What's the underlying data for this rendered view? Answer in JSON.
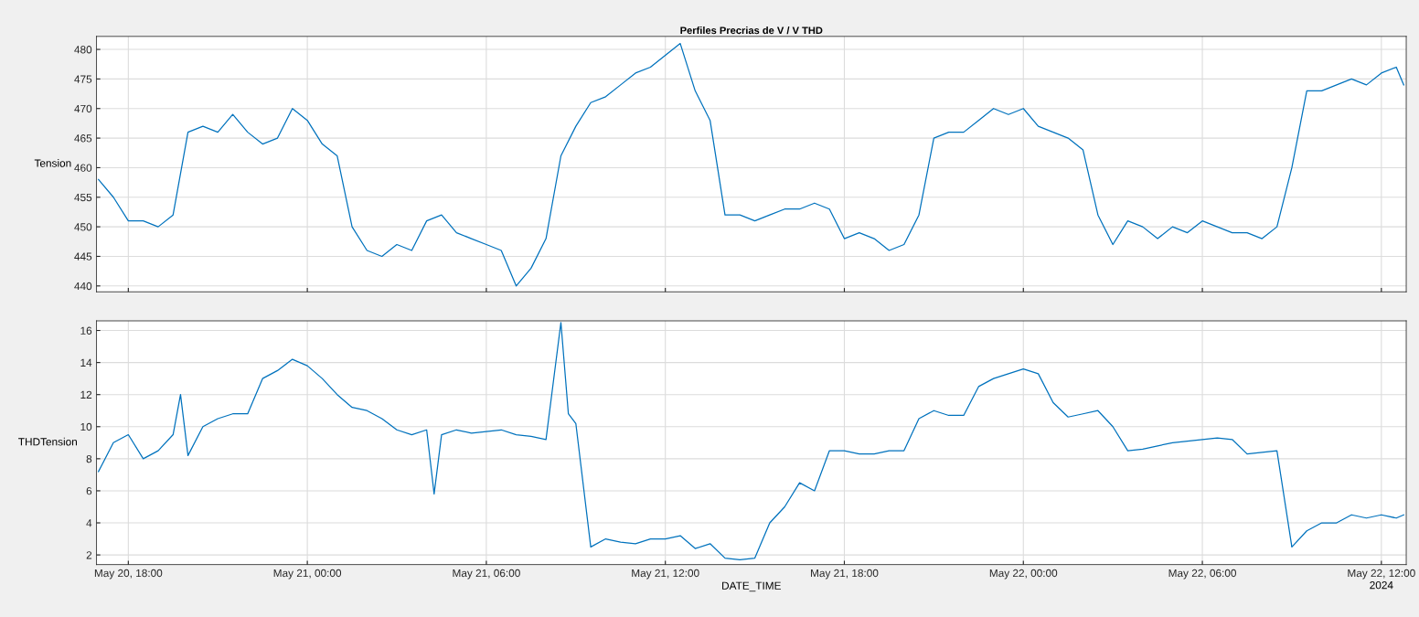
{
  "chart_data": [
    {
      "type": "line",
      "title": "Perfiles Precrias de V / V THD",
      "ylabel": "Tension",
      "grid": true,
      "tick_labels": "y",
      "xlim": [
        "2024-05-20T16:56",
        "2024-05-22T12:50"
      ],
      "ylim": [
        439,
        482.2
      ],
      "yticks": [
        440,
        445,
        450,
        455,
        460,
        465,
        470,
        475,
        480
      ],
      "xticks": [
        {
          "value": "2024-05-20T18:00",
          "label": null
        },
        {
          "value": "2024-05-21T00:00",
          "label": null
        },
        {
          "value": "2024-05-21T06:00",
          "label": null
        },
        {
          "value": "2024-05-21T12:00",
          "label": null
        },
        {
          "value": "2024-05-21T18:00",
          "label": null
        },
        {
          "value": "2024-05-22T00:00",
          "label": null
        },
        {
          "value": "2024-05-22T06:00",
          "label": null
        },
        {
          "value": "2024-05-22T12:00",
          "label": null
        }
      ],
      "x": [
        "2024-05-20T17:00",
        "2024-05-20T17:30",
        "2024-05-20T18:00",
        "2024-05-20T18:30",
        "2024-05-20T19:00",
        "2024-05-20T19:30",
        "2024-05-20T20:00",
        "2024-05-20T20:30",
        "2024-05-20T21:00",
        "2024-05-20T21:30",
        "2024-05-20T22:00",
        "2024-05-20T22:30",
        "2024-05-20T23:00",
        "2024-05-20T23:30",
        "2024-05-21T00:00",
        "2024-05-21T00:30",
        "2024-05-21T01:00",
        "2024-05-21T01:30",
        "2024-05-21T02:00",
        "2024-05-21T02:30",
        "2024-05-21T03:00",
        "2024-05-21T03:30",
        "2024-05-21T04:00",
        "2024-05-21T04:30",
        "2024-05-21T05:00",
        "2024-05-21T05:30",
        "2024-05-21T06:00",
        "2024-05-21T06:30",
        "2024-05-21T07:00",
        "2024-05-21T07:30",
        "2024-05-21T08:00",
        "2024-05-21T08:30",
        "2024-05-21T09:00",
        "2024-05-21T09:30",
        "2024-05-21T10:00",
        "2024-05-21T10:30",
        "2024-05-21T11:00",
        "2024-05-21T11:30",
        "2024-05-21T12:00",
        "2024-05-21T12:30",
        "2024-05-21T13:00",
        "2024-05-21T13:30",
        "2024-05-21T14:00",
        "2024-05-21T14:30",
        "2024-05-21T15:00",
        "2024-05-21T15:30",
        "2024-05-21T16:00",
        "2024-05-21T16:30",
        "2024-05-21T17:00",
        "2024-05-21T17:30",
        "2024-05-21T18:00",
        "2024-05-21T18:30",
        "2024-05-21T19:00",
        "2024-05-21T19:30",
        "2024-05-21T20:00",
        "2024-05-21T20:30",
        "2024-05-21T21:00",
        "2024-05-21T21:30",
        "2024-05-21T22:00",
        "2024-05-21T22:30",
        "2024-05-21T23:00",
        "2024-05-21T23:30",
        "2024-05-22T00:00",
        "2024-05-22T00:30",
        "2024-05-22T01:00",
        "2024-05-22T01:30",
        "2024-05-22T02:00",
        "2024-05-22T02:30",
        "2024-05-22T03:00",
        "2024-05-22T03:30",
        "2024-05-22T04:00",
        "2024-05-22T04:30",
        "2024-05-22T05:00",
        "2024-05-22T05:30",
        "2024-05-22T06:00",
        "2024-05-22T06:30",
        "2024-05-22T07:00",
        "2024-05-22T07:30",
        "2024-05-22T08:00",
        "2024-05-22T08:30",
        "2024-05-22T09:00",
        "2024-05-22T09:30",
        "2024-05-22T10:00",
        "2024-05-22T10:30",
        "2024-05-22T11:00",
        "2024-05-22T11:30",
        "2024-05-22T12:00",
        "2024-05-22T12:30",
        "2024-05-22T12:45"
      ],
      "series": [
        {
          "color": "#0072bd",
          "values": [
            458,
            455,
            451,
            451,
            450,
            452,
            466,
            467,
            466,
            469,
            466,
            464,
            465,
            470,
            468,
            464,
            462,
            450,
            446,
            445,
            447,
            446,
            451,
            452,
            449,
            448,
            447,
            446,
            440,
            443,
            448,
            462,
            467,
            471,
            472,
            474,
            476,
            477,
            479,
            481,
            473,
            468,
            452,
            452,
            451,
            452,
            453,
            453,
            454,
            453,
            448,
            449,
            448,
            446,
            447,
            452,
            465,
            466,
            466,
            468,
            470,
            469,
            470,
            467,
            466,
            465,
            463,
            452,
            447,
            451,
            450,
            448,
            450,
            449,
            451,
            450,
            449,
            449,
            448,
            450,
            460,
            473,
            473,
            474,
            475,
            474,
            476,
            477,
            474
          ]
        }
      ]
    },
    {
      "type": "line",
      "ylabel": "THDTension",
      "xlabel": "DATE_TIME",
      "grid": true,
      "xlim": [
        "2024-05-20T16:56",
        "2024-05-22T12:50"
      ],
      "ylim": [
        1.4,
        16.6
      ],
      "yticks": [
        2,
        4,
        6,
        8,
        10,
        12,
        14,
        16
      ],
      "annotations": [
        "2024"
      ],
      "xticks": [
        {
          "value": "2024-05-20T18:00",
          "label": "May 20, 18:00"
        },
        {
          "value": "2024-05-21T00:00",
          "label": "May 21, 00:00"
        },
        {
          "value": "2024-05-21T06:00",
          "label": "May 21, 06:00"
        },
        {
          "value": "2024-05-21T12:00",
          "label": "May 21, 12:00"
        },
        {
          "value": "2024-05-21T18:00",
          "label": "May 21, 18:00"
        },
        {
          "value": "2024-05-22T00:00",
          "label": "May 22, 00:00"
        },
        {
          "value": "2024-05-22T06:00",
          "label": "May 22, 06:00"
        },
        {
          "value": "2024-05-22T12:00",
          "label": "May 22, 12:00"
        }
      ],
      "x": [
        "2024-05-20T17:00",
        "2024-05-20T17:30",
        "2024-05-20T18:00",
        "2024-05-20T18:30",
        "2024-05-20T19:00",
        "2024-05-20T19:30",
        "2024-05-20T19:45",
        "2024-05-20T20:00",
        "2024-05-20T20:30",
        "2024-05-20T21:00",
        "2024-05-20T21:30",
        "2024-05-20T22:00",
        "2024-05-20T22:30",
        "2024-05-20T23:00",
        "2024-05-20T23:30",
        "2024-05-21T00:00",
        "2024-05-21T00:30",
        "2024-05-21T01:00",
        "2024-05-21T01:30",
        "2024-05-21T02:00",
        "2024-05-21T02:30",
        "2024-05-21T03:00",
        "2024-05-21T03:30",
        "2024-05-21T04:00",
        "2024-05-21T04:15",
        "2024-05-21T04:30",
        "2024-05-21T05:00",
        "2024-05-21T05:30",
        "2024-05-21T06:00",
        "2024-05-21T06:30",
        "2024-05-21T07:00",
        "2024-05-21T07:30",
        "2024-05-21T08:00",
        "2024-05-21T08:30",
        "2024-05-21T08:45",
        "2024-05-21T09:00",
        "2024-05-21T09:30",
        "2024-05-21T10:00",
        "2024-05-21T10:30",
        "2024-05-21T11:00",
        "2024-05-21T11:30",
        "2024-05-21T12:00",
        "2024-05-21T12:30",
        "2024-05-21T13:00",
        "2024-05-21T13:30",
        "2024-05-21T14:00",
        "2024-05-21T14:30",
        "2024-05-21T15:00",
        "2024-05-21T15:30",
        "2024-05-21T16:00",
        "2024-05-21T16:30",
        "2024-05-21T17:00",
        "2024-05-21T17:30",
        "2024-05-21T18:00",
        "2024-05-21T18:30",
        "2024-05-21T19:00",
        "2024-05-21T19:30",
        "2024-05-21T20:00",
        "2024-05-21T20:30",
        "2024-05-21T21:00",
        "2024-05-21T21:30",
        "2024-05-21T22:00",
        "2024-05-21T22:30",
        "2024-05-21T23:00",
        "2024-05-21T23:30",
        "2024-05-22T00:00",
        "2024-05-22T00:30",
        "2024-05-22T01:00",
        "2024-05-22T01:30",
        "2024-05-22T02:00",
        "2024-05-22T02:30",
        "2024-05-22T03:00",
        "2024-05-22T03:30",
        "2024-05-22T04:00",
        "2024-05-22T04:30",
        "2024-05-22T05:00",
        "2024-05-22T05:30",
        "2024-05-22T06:00",
        "2024-05-22T06:30",
        "2024-05-22T07:00",
        "2024-05-22T07:30",
        "2024-05-22T08:00",
        "2024-05-22T08:30",
        "2024-05-22T09:00",
        "2024-05-22T09:30",
        "2024-05-22T10:00",
        "2024-05-22T10:30",
        "2024-05-22T11:00",
        "2024-05-22T11:30",
        "2024-05-22T12:00",
        "2024-05-22T12:30",
        "2024-05-22T12:45"
      ],
      "series": [
        {
          "color": "#0072bd",
          "values": [
            7.2,
            9,
            9.5,
            8,
            8.5,
            9.5,
            12,
            8.2,
            10,
            10.5,
            10.8,
            10.8,
            13,
            13.5,
            14.2,
            13.8,
            13,
            12,
            11.2,
            11,
            10.5,
            9.8,
            9.5,
            9.8,
            5.8,
            9.5,
            9.8,
            9.6,
            9.7,
            9.8,
            9.5,
            9.4,
            9.2,
            16.5,
            10.8,
            10.2,
            2.5,
            3,
            2.8,
            2.7,
            3,
            3,
            3.2,
            2.4,
            2.7,
            1.8,
            1.7,
            1.8,
            4,
            5,
            6.5,
            6,
            8.5,
            8.5,
            8.3,
            8.3,
            8.5,
            8.5,
            10.5,
            11,
            10.7,
            10.7,
            12.5,
            13,
            13.3,
            13.6,
            13.3,
            11.5,
            10.6,
            10.8,
            11,
            10,
            8.5,
            8.6,
            8.8,
            9,
            9.1,
            9.2,
            9.3,
            9.2,
            8.3,
            8.4,
            8.5,
            2.5,
            3.5,
            4,
            4,
            4.5,
            4.3,
            4.5,
            4.3,
            4.5
          ]
        }
      ]
    }
  ]
}
